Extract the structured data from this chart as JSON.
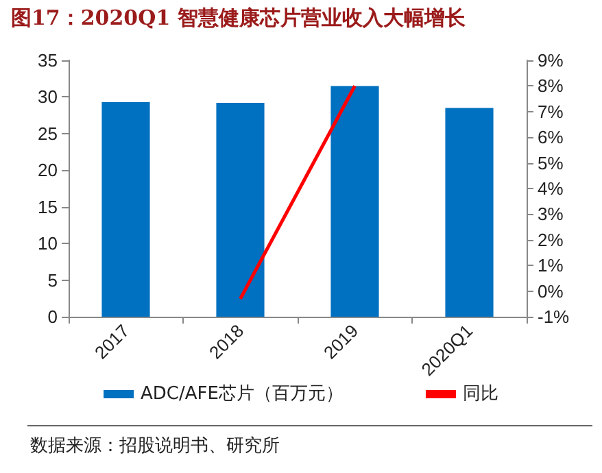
{
  "chart_data": {
    "type": "bar",
    "title": "图17：2020Q1 智慧健康芯片营业收入大幅增长",
    "categories": [
      "2017",
      "2018",
      "2019",
      "2020Q1"
    ],
    "series": [
      {
        "name": "ADC/AFE芯片（百万元）",
        "color": "#0070c0",
        "values": [
          29.3,
          29.2,
          31.5,
          28.5
        ]
      },
      {
        "name": "同比",
        "type": "line",
        "axis": "y2",
        "color": "#ff0000",
        "values": [
          null,
          -0.3,
          8.0,
          null
        ]
      }
    ],
    "ylim": [
      0,
      35
    ],
    "yticks": [
      0,
      5,
      10,
      15,
      20,
      25,
      30,
      35
    ],
    "y2lim": [
      -1,
      9
    ],
    "y2ticks": [
      {
        "value": -1,
        "label": "-1%"
      },
      {
        "value": 0,
        "label": "0%"
      },
      {
        "value": 1,
        "label": "1%"
      },
      {
        "value": 2,
        "label": "2%"
      },
      {
        "value": 3,
        "label": "3%"
      },
      {
        "value": 4,
        "label": "4%"
      },
      {
        "value": 5,
        "label": "5%"
      },
      {
        "value": 6,
        "label": "6%"
      },
      {
        "value": 7,
        "label": "7%"
      },
      {
        "value": 8,
        "label": "8%"
      },
      {
        "value": 9,
        "label": "9%"
      }
    ],
    "grid": false,
    "legend": "bottom",
    "marker": "none",
    "annotations": [
      "数据来源：招股说明书、研究所"
    ]
  }
}
